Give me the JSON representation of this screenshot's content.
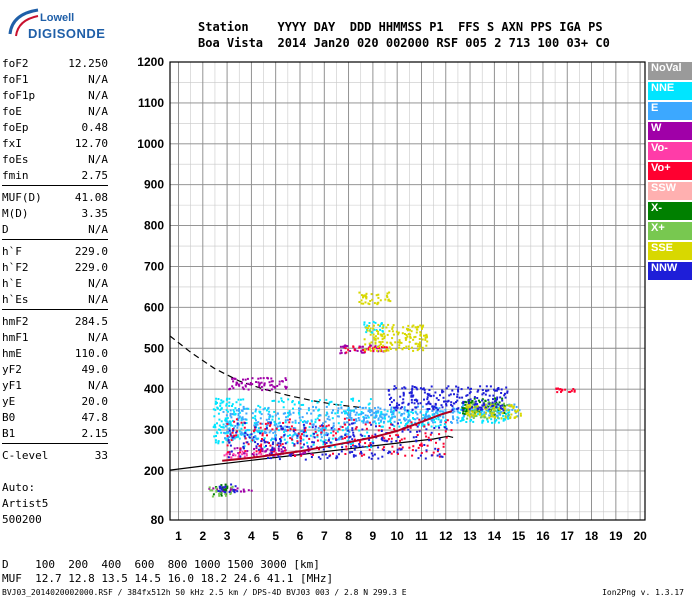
{
  "logo": {
    "line1": "Lowell",
    "line2": "DIGISONDE"
  },
  "header": {
    "row1": "Station    YYYY DAY  DDD HHMMSS P1  FFS S AXN PPS IGA PS",
    "row2": "Boa Vista  2014 Jan20 020 002000 RSF 005 2 713 100 03+ C0"
  },
  "params": [
    [
      [
        "foF2",
        "12.250"
      ],
      [
        "foF1",
        "N/A"
      ],
      [
        "foF1p",
        "N/A"
      ],
      [
        "foE",
        "N/A"
      ],
      [
        "foEp",
        "0.48"
      ],
      [
        "fxI",
        "12.70"
      ],
      [
        "foEs",
        "N/A"
      ],
      [
        "fmin",
        "2.75"
      ]
    ],
    [
      [
        "MUF(D)",
        "41.08"
      ],
      [
        "M(D)",
        "3.35"
      ],
      [
        "D",
        "N/A"
      ]
    ],
    [
      [
        "h`F",
        "229.0"
      ],
      [
        "h`F2",
        "229.0"
      ],
      [
        "h`E",
        "N/A"
      ],
      [
        "h`Es",
        "N/A"
      ]
    ],
    [
      [
        "hmF2",
        "284.5"
      ],
      [
        "hmF1",
        "N/A"
      ],
      [
        "hmE",
        "110.0"
      ],
      [
        "yF2",
        "49.0"
      ],
      [
        "yF1",
        "N/A"
      ],
      [
        "yE",
        "20.0"
      ],
      [
        "B0",
        "47.8"
      ],
      [
        "B1",
        "2.15"
      ]
    ],
    [
      [
        "C-level",
        "33"
      ]
    ]
  ],
  "auto": {
    "l1": "Auto:",
    "l2": "Artist5",
    "l3": "500200"
  },
  "footer": {
    "d_row": "D    100  200  400  600  800 1000 1500 3000 [km]",
    "muf_row": "MUF  12.7 12.8 13.5 14.5 16.0 18.2 24.6 41.1 [MHz]",
    "file_row": "BVJ03_2014020002000.RSF / 384fx512h 50 kHz 2.5 km / DPS-4D BVJ03 003 / 2.8 N 299.3 E",
    "version": "Ion2Png v. 1.3.17"
  },
  "legend": [
    {
      "label": "NoVal",
      "color": "#9a9a9a"
    },
    {
      "label": "NNE",
      "color": "#00e5ff"
    },
    {
      "label": "E",
      "color": "#3ca8ff"
    },
    {
      "label": "W",
      "color": "#a000a8"
    },
    {
      "label": "Vo-",
      "color": "#ff3ca8"
    },
    {
      "label": "Vo+",
      "color": "#ff0030"
    },
    {
      "label": "SSW",
      "color": "#ffb0b0"
    },
    {
      "label": "X-",
      "color": "#008000"
    },
    {
      "label": "X+",
      "color": "#78c850"
    },
    {
      "label": "SSE",
      "color": "#d8d800"
    },
    {
      "label": "NNW",
      "color": "#1e1ed8"
    }
  ],
  "chart_data": {
    "type": "scatter",
    "xlim": [
      0.65,
      20.2
    ],
    "ylim": [
      80,
      1200
    ],
    "x_ticks": [
      1,
      2,
      3,
      4,
      5,
      6,
      7,
      8,
      9,
      10,
      11,
      12,
      13,
      14,
      15,
      16,
      17,
      18,
      19,
      20
    ],
    "y_ticks": [
      80,
      200,
      300,
      400,
      500,
      600,
      700,
      800,
      900,
      1000,
      1100,
      1200
    ],
    "grid": true,
    "series": [
      {
        "name": "NNE",
        "clusters": [
          [
            2.4,
            3.6,
            270,
            380
          ],
          [
            3.6,
            9.0,
            260,
            380
          ],
          [
            9.0,
            12.0,
            310,
            350
          ],
          [
            8.6,
            9.4,
            540,
            570
          ],
          [
            12.4,
            14.6,
            320,
            360
          ]
        ]
      },
      {
        "name": "E",
        "clusters": [
          [
            2.8,
            8.0,
            280,
            360
          ],
          [
            8.0,
            12.5,
            320,
            360
          ],
          [
            12.6,
            15.0,
            335,
            365
          ]
        ]
      },
      {
        "name": "W",
        "clusters": [
          [
            2.2,
            4.0,
            150,
            160
          ],
          [
            3.0,
            5.5,
            400,
            430
          ],
          [
            3.0,
            6.5,
            240,
            260
          ],
          [
            7.5,
            9.5,
            490,
            510
          ]
        ]
      },
      {
        "name": "Vo-",
        "clusters": [
          [
            2.8,
            5.0,
            235,
            250
          ]
        ]
      },
      {
        "name": "Vo+",
        "clusters": [
          [
            2.9,
            12.2,
            235,
            330
          ],
          [
            7.8,
            9.6,
            492,
            508
          ],
          [
            16.5,
            17.5,
            395,
            405
          ]
        ]
      },
      {
        "name": "X-",
        "clusters": [
          [
            2.4,
            3.0,
            140,
            170
          ],
          [
            12.6,
            14.4,
            340,
            380
          ]
        ]
      },
      {
        "name": "X+",
        "clusters": [
          [
            2.2,
            3.2,
            140,
            165
          ],
          [
            12.8,
            14.6,
            330,
            370
          ]
        ]
      },
      {
        "name": "SSE",
        "clusters": [
          [
            8.6,
            11.2,
            495,
            560
          ],
          [
            8.4,
            9.8,
            610,
            640
          ],
          [
            12.8,
            15.2,
            330,
            365
          ]
        ]
      },
      {
        "name": "NNW",
        "clusters": [
          [
            3.0,
            12.0,
            230,
            320
          ],
          [
            9.5,
            14.5,
            350,
            410
          ],
          [
            2.6,
            3.4,
            150,
            170
          ]
        ]
      }
    ],
    "profile_trace": [
      [
        2.8,
        225
      ],
      [
        4,
        232
      ],
      [
        6,
        248
      ],
      [
        8,
        270
      ],
      [
        9,
        282
      ],
      [
        10,
        298
      ],
      [
        11,
        320
      ],
      [
        11.8,
        338
      ],
      [
        12.25,
        346
      ]
    ],
    "fitted_trace": [
      [
        0.65,
        202
      ],
      [
        2,
        212
      ],
      [
        4,
        226
      ],
      [
        6,
        240
      ],
      [
        8,
        254
      ],
      [
        10,
        268
      ],
      [
        11.5,
        278
      ],
      [
        12.1,
        285
      ],
      [
        12.3,
        282
      ]
    ],
    "dashed_trace": [
      [
        0.65,
        530
      ],
      [
        1.5,
        490
      ],
      [
        2.5,
        450
      ],
      [
        3.5,
        420
      ],
      [
        4.5,
        400
      ],
      [
        5.5,
        385
      ],
      [
        6.5,
        372
      ],
      [
        7.5,
        362
      ],
      [
        8.5,
        355
      ]
    ]
  }
}
